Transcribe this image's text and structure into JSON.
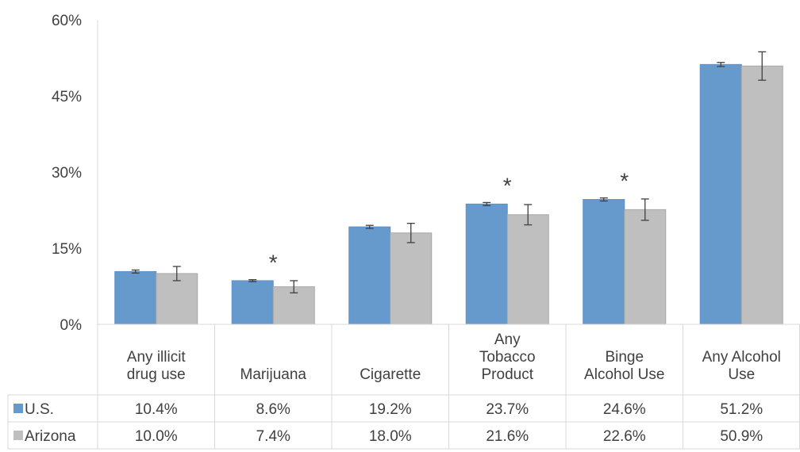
{
  "chart_data": {
    "type": "bar",
    "categories": [
      [
        "Any illicit",
        "drug use"
      ],
      [
        "Marijuana"
      ],
      [
        "Cigarette"
      ],
      [
        "Any",
        "Tobacco",
        "Product"
      ],
      [
        "Binge",
        "Alcohol Use"
      ],
      [
        "Any Alcohol",
        "Use"
      ]
    ],
    "series": [
      {
        "name": "U.S.",
        "color": "#6699CC",
        "values": [
          10.4,
          8.6,
          19.2,
          23.7,
          24.6,
          51.2
        ],
        "labels": [
          "10.4%",
          "8.6%",
          "19.2%",
          "23.7%",
          "24.6%",
          "51.2%"
        ],
        "error": [
          0.3,
          0.2,
          0.3,
          0.3,
          0.3,
          0.4
        ]
      },
      {
        "name": "Arizona",
        "color": "#BFBFBF",
        "values": [
          10.0,
          7.4,
          18.0,
          21.6,
          22.6,
          50.9
        ],
        "labels": [
          "10.0%",
          "7.4%",
          "18.0%",
          "21.6%",
          "22.6%",
          "50.9%"
        ],
        "error": [
          1.4,
          1.2,
          1.9,
          2.0,
          2.1,
          2.8
        ]
      }
    ],
    "significant": [
      false,
      true,
      false,
      true,
      true,
      false
    ],
    "significance_marker": "*",
    "y_ticks": [
      "0%",
      "15%",
      "30%",
      "45%",
      "60%"
    ],
    "ylim": [
      0,
      60
    ],
    "grid": false,
    "legend": "data-table",
    "title": "",
    "xlabel": "",
    "ylabel": ""
  }
}
